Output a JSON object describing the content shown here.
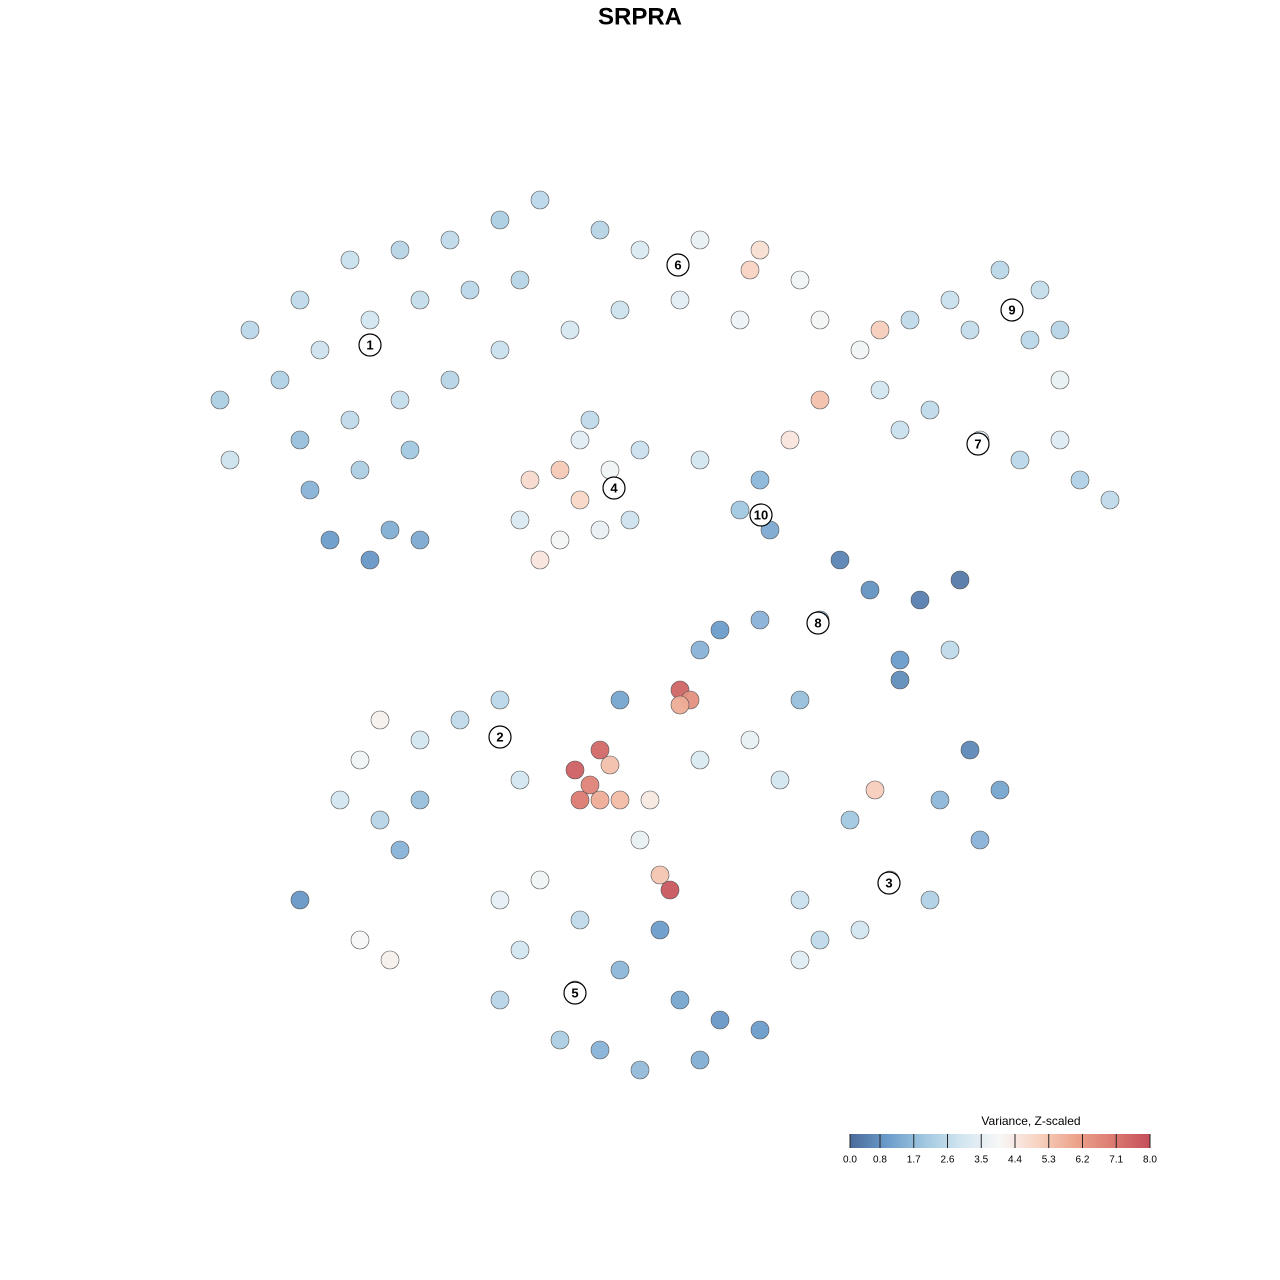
{
  "chart_data": {
    "type": "scatter",
    "title": "SRPRA",
    "xlim": [
      0,
      96
    ],
    "ylim": [
      0,
      96
    ],
    "x": [
      6,
      9,
      14,
      19,
      24,
      29,
      34,
      38,
      12,
      16,
      21,
      26,
      31,
      36,
      14,
      19,
      24,
      29,
      34,
      15,
      20,
      25,
      17,
      21,
      23,
      7,
      26,
      44,
      48,
      54,
      60,
      59,
      64,
      66,
      52,
      46,
      41,
      58,
      70,
      75,
      79,
      84,
      88,
      90,
      90,
      87,
      81,
      72,
      72,
      77,
      82,
      86,
      92,
      95,
      90,
      74,
      66,
      37,
      40,
      42,
      45,
      48,
      36,
      40,
      44,
      47,
      42,
      38,
      43,
      60,
      61,
      58,
      63,
      54,
      68,
      71,
      76,
      80,
      74,
      79,
      74,
      66,
      60,
      56,
      22,
      26,
      30,
      34,
      18,
      22,
      26,
      20,
      24,
      14,
      20,
      23,
      36,
      41.5,
      43,
      45,
      44,
      42,
      46,
      52,
      53,
      52,
      44,
      51,
      50,
      49,
      54,
      59,
      62,
      46,
      54,
      64,
      48,
      73,
      69,
      78,
      84,
      82,
      77,
      64,
      66,
      70,
      64,
      71.5,
      81,
      34,
      38,
      36,
      41.5,
      46,
      52,
      56,
      60,
      44,
      48,
      40,
      34,
      54,
      50,
      42
    ],
    "y": [
      72,
      79,
      82,
      86,
      87,
      88,
      90,
      92,
      74,
      77,
      80,
      82,
      83,
      84,
      68,
      70,
      72,
      74,
      77,
      63,
      65,
      67,
      58,
      56,
      59,
      66,
      58,
      89,
      87,
      88,
      87,
      85,
      84,
      80,
      82,
      81,
      79,
      80,
      77,
      80,
      82,
      85,
      83,
      79,
      74,
      78,
      79,
      79,
      73,
      71,
      68,
      66,
      64,
      62,
      68,
      69,
      72,
      64,
      65,
      62,
      65,
      67,
      60,
      58,
      59,
      60,
      68,
      56,
      70,
      64,
      59,
      61,
      68,
      66,
      56,
      53,
      52,
      54,
      46,
      47,
      44,
      50,
      50,
      49,
      40,
      38,
      40,
      42,
      32,
      30,
      32,
      36,
      27,
      22,
      18,
      16,
      34,
      35,
      33.5,
      35.5,
      32,
      32,
      32,
      43,
      42,
      41.5,
      37,
      23,
      24.5,
      32,
      36,
      38,
      34,
      42,
      47,
      42,
      28,
      24,
      30,
      32,
      33,
      28,
      22,
      22,
      18,
      19,
      16,
      33,
      37,
      22,
      24,
      17,
      13,
      15,
      12,
      10,
      9,
      7,
      5,
      8,
      12,
      6,
      19,
      20
    ],
    "values": [
      2.2,
      2.5,
      2.6,
      2.8,
      2.4,
      2.6,
      2.2,
      2.5,
      2.3,
      2.9,
      3.0,
      2.7,
      2.5,
      2.4,
      1.8,
      2.6,
      2.7,
      2.4,
      2.8,
      1.5,
      2.2,
      2.0,
      1.0,
      0.9,
      1.4,
      2.9,
      1.3,
      2.4,
      3.2,
      3.6,
      4.7,
      5.0,
      3.8,
      3.9,
      3.4,
      2.9,
      3.1,
      3.7,
      3.8,
      2.6,
      2.8,
      2.5,
      2.7,
      2.4,
      3.6,
      2.5,
      2.7,
      5.1,
      3.0,
      2.6,
      3.2,
      2.5,
      2.3,
      2.6,
      3.3,
      2.8,
      5.4,
      4.8,
      5.2,
      4.9,
      3.8,
      2.8,
      3.2,
      3.9,
      3.6,
      2.9,
      3.4,
      4.5,
      2.6,
      1.6,
      1.3,
      2.0,
      4.5,
      3.0,
      0.5,
      0.8,
      0.4,
      0.3,
      1.0,
      2.6,
      0.7,
      1.8,
      1.5,
      1.0,
      4.2,
      3.0,
      2.6,
      2.5,
      3.0,
      2.4,
      1.8,
      3.8,
      1.5,
      0.9,
      4.0,
      4.2,
      3.0,
      7.6,
      6.8,
      5.4,
      5.8,
      7.0,
      5.5,
      7.5,
      6.5,
      5.8,
      7.4,
      7.8,
      5.3,
      4.4,
      3.2,
      3.6,
      3.0,
      1.2,
      1.5,
      1.8,
      3.6,
      2.2,
      2.0,
      1.6,
      1.2,
      1.5,
      2.3,
      2.8,
      2.6,
      3.0,
      3.4,
      5.1,
      0.6,
      3.5,
      3.8,
      3.0,
      2.0,
      1.6,
      1.2,
      0.9,
      1.0,
      1.5,
      1.7,
      2.2,
      2.4,
      1.4,
      1.0,
      2.6
    ],
    "clusters": [
      {
        "label": "1",
        "x": 21,
        "y": 77.5
      },
      {
        "label": "2",
        "x": 34,
        "y": 38.3
      },
      {
        "label": "3",
        "x": 72.9,
        "y": 23.7
      },
      {
        "label": "4",
        "x": 45.4,
        "y": 63.2
      },
      {
        "label": "5",
        "x": 41.5,
        "y": 12.7
      },
      {
        "label": "6",
        "x": 51.8,
        "y": 85.5
      },
      {
        "label": "7",
        "x": 81.8,
        "y": 67.6
      },
      {
        "label": "8",
        "x": 65.8,
        "y": 49.7
      },
      {
        "label": "9",
        "x": 85.2,
        "y": 81
      },
      {
        "label": "10",
        "x": 60.1,
        "y": 60.5
      }
    ],
    "colorbar_title": "Variance, Z-scaled",
    "clim": [
      0,
      8
    ],
    "colorscale": [
      "#4a6a9a",
      "#6b9ccb",
      "#a2c8e0",
      "#d3e6f0",
      "#f7f7f7",
      "#f8d3c2",
      "#eca48c",
      "#dc7b72",
      "#c44e5a"
    ],
    "cticks": [
      {
        "value": 0,
        "label": "0.0"
      },
      0.8,
      1.7,
      2.6,
      3.5,
      4.4,
      5.3,
      6.2,
      7.1,
      {
        "value": 8,
        "label": "8.0"
      }
    ]
  }
}
